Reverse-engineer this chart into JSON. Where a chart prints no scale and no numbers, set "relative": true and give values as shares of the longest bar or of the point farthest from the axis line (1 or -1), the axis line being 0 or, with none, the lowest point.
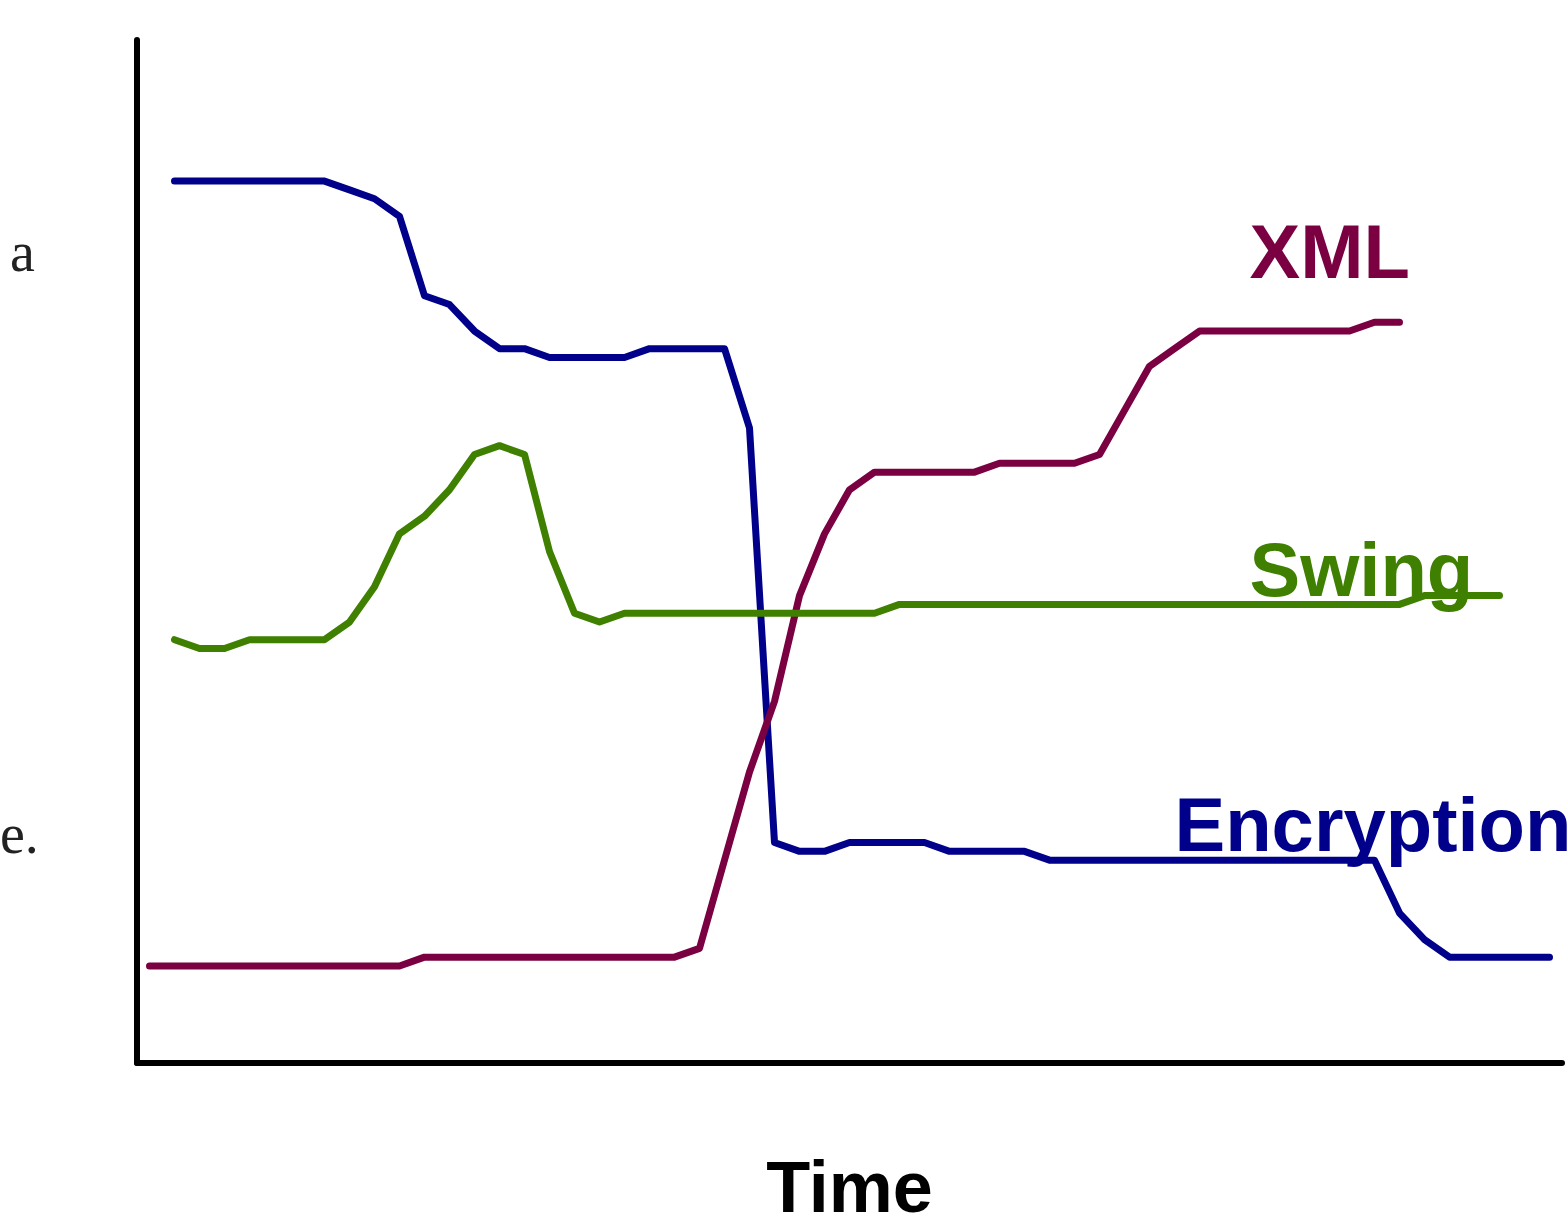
{
  "chart_data": {
    "type": "line",
    "relative": true,
    "xlabel": "Time",
    "annotations": [
      "a",
      "e."
    ],
    "categories": [
      null,
      null,
      null,
      null,
      null,
      null,
      null,
      null,
      null,
      null,
      null,
      null,
      null,
      null,
      null,
      null,
      null,
      null,
      null,
      null,
      null,
      null,
      null,
      null,
      null,
      null,
      null,
      null,
      null,
      null,
      null,
      null,
      null,
      null,
      null,
      null,
      null,
      null,
      null,
      null,
      null,
      null,
      null,
      null,
      null,
      null,
      null,
      null,
      null,
      null,
      null,
      null,
      null,
      null,
      null,
      null,
      null
    ],
    "series": [
      {
        "name": "Encryption",
        "color": "#00008b",
        "values": [
          null,
          1.0,
          1.0,
          1.0,
          1.0,
          1.0,
          1.0,
          1.0,
          0.99,
          0.98,
          0.96,
          0.87,
          0.86,
          0.83,
          0.81,
          0.81,
          0.8,
          0.8,
          0.8,
          0.8,
          0.81,
          0.81,
          0.81,
          0.81,
          0.72,
          0.25,
          0.24,
          0.24,
          0.25,
          0.25,
          0.25,
          0.25,
          0.24,
          0.24,
          0.24,
          0.24,
          0.23,
          0.23,
          0.23,
          0.23,
          0.23,
          0.23,
          0.23,
          0.23,
          0.23,
          0.23,
          0.23,
          0.23,
          0.23,
          0.23,
          0.17,
          0.14,
          0.12,
          0.12,
          0.12,
          0.12,
          0.12
        ]
      },
      {
        "name": "XML",
        "color": "#7a0042",
        "values": [
          0.11,
          0.11,
          0.11,
          0.11,
          0.11,
          0.11,
          0.11,
          0.11,
          0.11,
          0.11,
          0.11,
          0.12,
          0.12,
          0.12,
          0.12,
          0.12,
          0.12,
          0.12,
          0.12,
          0.12,
          0.12,
          0.12,
          0.13,
          0.23,
          0.33,
          0.41,
          0.53,
          0.6,
          0.65,
          0.67,
          0.67,
          0.67,
          0.67,
          0.67,
          0.68,
          0.68,
          0.68,
          0.68,
          0.69,
          0.74,
          0.79,
          0.81,
          0.83,
          0.83,
          0.83,
          0.83,
          0.83,
          0.83,
          0.83,
          0.84,
          0.84,
          null,
          null,
          null,
          null,
          null,
          null
        ]
      },
      {
        "name": "Swing",
        "color": "#3f8000",
        "values": [
          null,
          0.48,
          0.47,
          0.47,
          0.48,
          0.48,
          0.48,
          0.48,
          0.5,
          0.54,
          0.6,
          0.62,
          0.65,
          0.69,
          0.7,
          0.69,
          0.58,
          0.51,
          0.5,
          0.51,
          0.51,
          0.51,
          0.51,
          0.51,
          0.51,
          0.51,
          0.51,
          0.51,
          0.51,
          0.51,
          0.52,
          0.52,
          0.52,
          0.52,
          0.52,
          0.52,
          0.52,
          0.52,
          0.52,
          0.52,
          0.52,
          0.52,
          0.52,
          0.52,
          0.52,
          0.52,
          0.52,
          0.52,
          0.52,
          0.52,
          0.52,
          0.53,
          0.53,
          0.53,
          0.53,
          null,
          null
        ]
      }
    ]
  }
}
